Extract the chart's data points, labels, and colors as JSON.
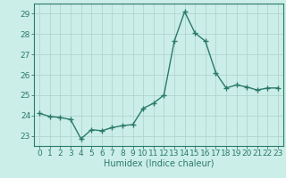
{
  "x": [
    0,
    1,
    2,
    3,
    4,
    5,
    6,
    7,
    8,
    9,
    10,
    11,
    12,
    13,
    14,
    15,
    16,
    17,
    18,
    19,
    20,
    21,
    22,
    23
  ],
  "y": [
    24.1,
    23.95,
    23.9,
    23.8,
    22.85,
    23.3,
    23.25,
    23.4,
    23.5,
    23.55,
    24.35,
    24.6,
    25.0,
    27.65,
    29.1,
    28.05,
    27.65,
    26.1,
    25.35,
    25.5,
    25.4,
    25.25,
    25.35,
    25.35
  ],
  "line_color": "#2a7a6a",
  "marker": "+",
  "marker_size": 4,
  "bg_color": "#cceee8",
  "grid_color": "#b0d4ce",
  "xlabel": "Humidex (Indice chaleur)",
  "ylim": [
    22.5,
    29.5
  ],
  "yticks": [
    23,
    24,
    25,
    26,
    27,
    28,
    29
  ],
  "xticks": [
    0,
    1,
    2,
    3,
    4,
    5,
    6,
    7,
    8,
    9,
    10,
    11,
    12,
    13,
    14,
    15,
    16,
    17,
    18,
    19,
    20,
    21,
    22,
    23
  ],
  "tick_color": "#2a7a6a",
  "axis_color": "#2a7a6a",
  "fontsize_xlabel": 7,
  "fontsize_ticks": 6.5,
  "linewidth": 1.0
}
